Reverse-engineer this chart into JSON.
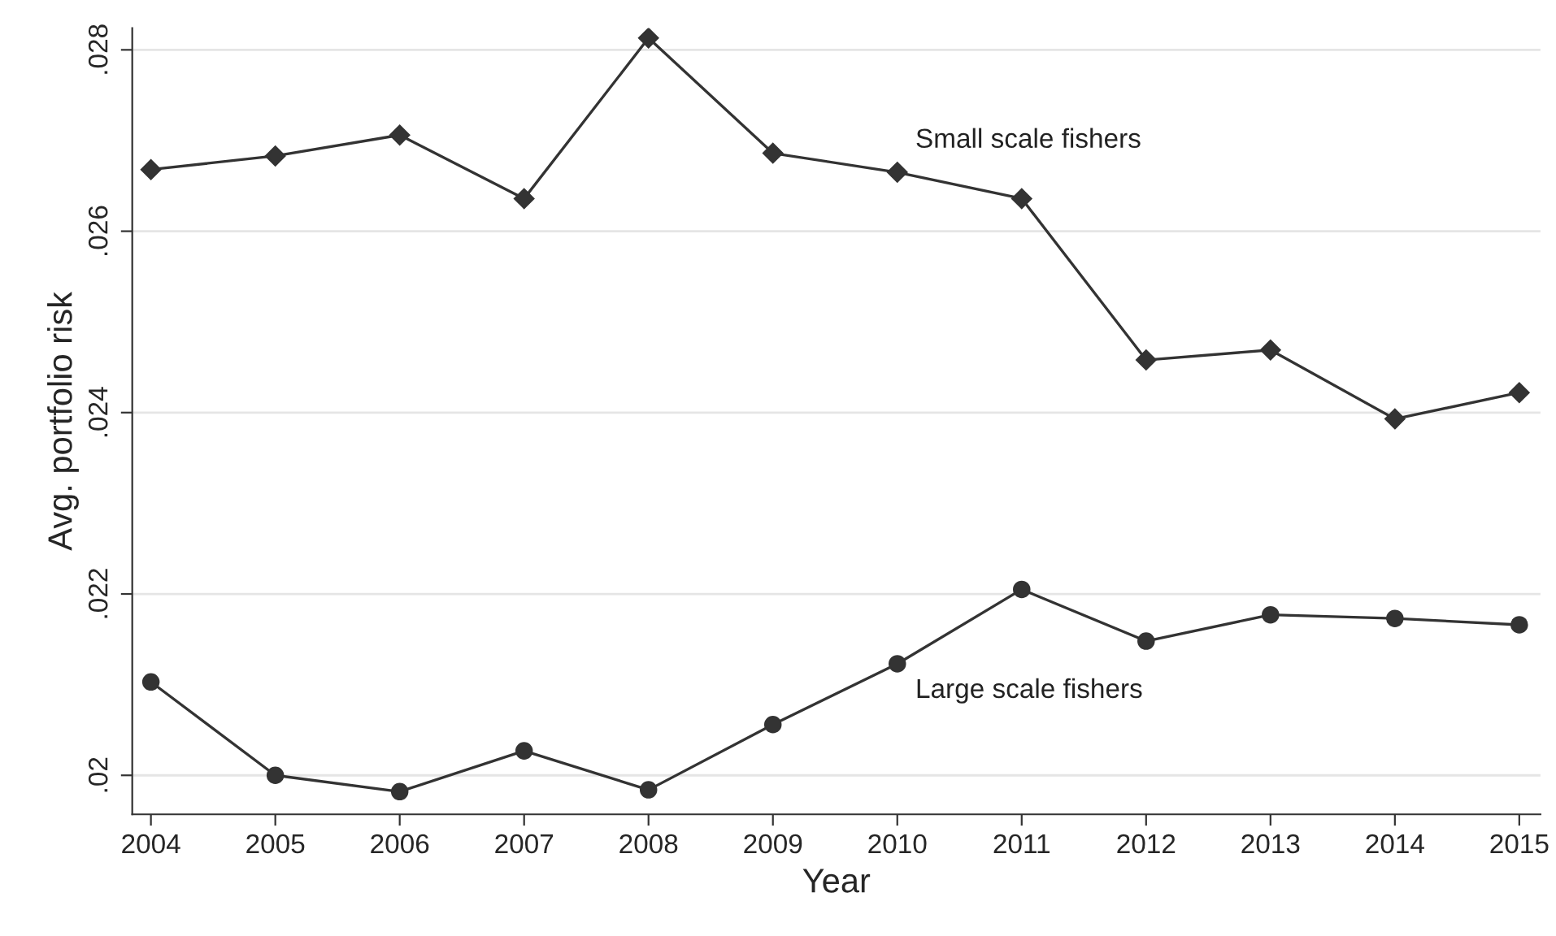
{
  "chart_data": {
    "type": "line",
    "xlabel": "Year",
    "ylabel": "Avg. portfolio risk",
    "x": [
      2004,
      2005,
      2006,
      2007,
      2008,
      2009,
      2010,
      2011,
      2012,
      2013,
      2014,
      2015
    ],
    "series": [
      {
        "name": "Small scale fishers",
        "color": "#333333",
        "marker": "diamond",
        "values": [
          0.02668,
          0.02683,
          0.02706,
          0.02636,
          0.02813,
          0.02686,
          0.02665,
          0.02636,
          0.02458,
          0.02469,
          0.02393,
          0.02422
        ]
      },
      {
        "name": "Large scale fishers",
        "color": "#333333",
        "marker": "circle",
        "values": [
          0.02103,
          0.02,
          0.01982,
          0.02027,
          0.01984,
          0.02056,
          0.02123,
          0.02205,
          0.02148,
          0.02177,
          0.02173,
          0.02166
        ]
      }
    ],
    "xlim": [
      2003.85,
      2015.17
    ],
    "xticks": [
      2004,
      2005,
      2006,
      2007,
      2008,
      2009,
      2010,
      2011,
      2012,
      2013,
      2014,
      2015
    ],
    "ylim": [
      0.01957,
      0.02824
    ],
    "yticks": [
      {
        "value": 0.02,
        "label": ".02"
      },
      {
        "value": 0.022,
        "label": ".022"
      },
      {
        "value": 0.024,
        "label": ".024"
      },
      {
        "value": 0.026,
        "label": ".026"
      },
      {
        "value": 0.028,
        "label": ".028"
      }
    ],
    "grid": "y",
    "legend": false,
    "line_style": "solid"
  }
}
